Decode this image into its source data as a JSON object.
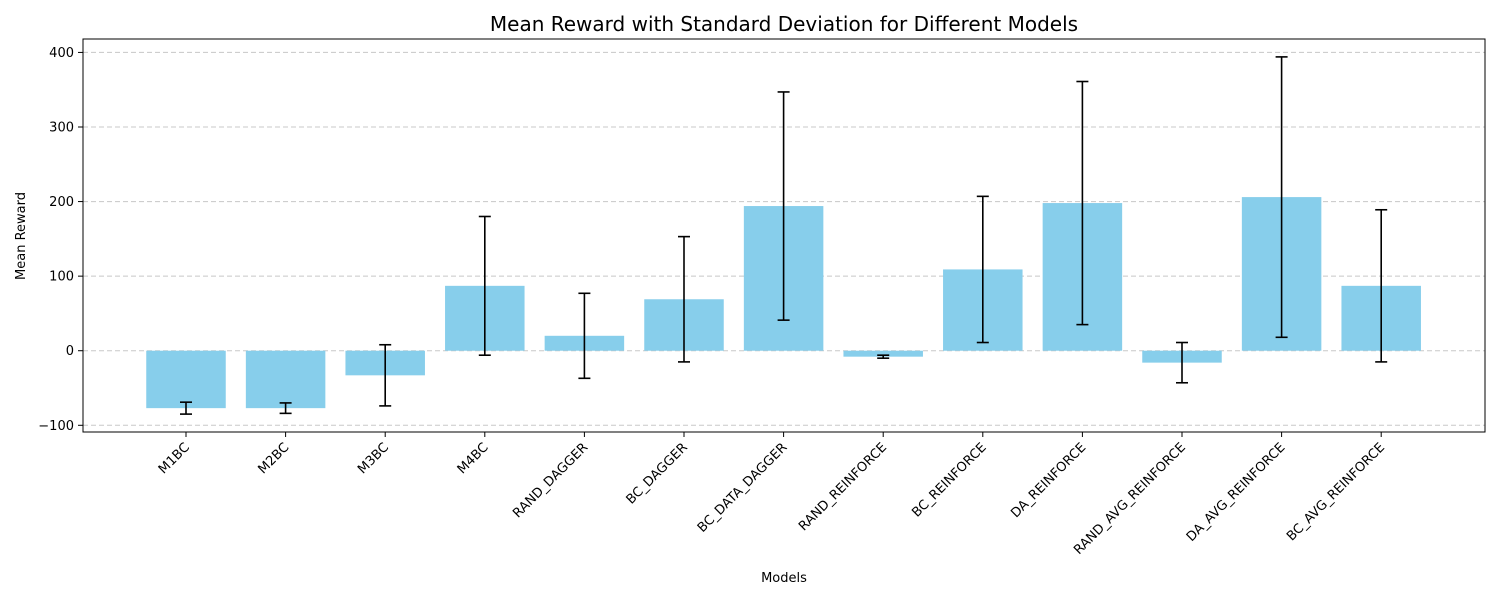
{
  "chart_data": {
    "type": "bar",
    "title": "Mean Reward with Standard Deviation for Different Models",
    "xlabel": "Models",
    "ylabel": "Mean Reward",
    "ylim": [
      -109,
      418
    ],
    "yticks": [
      -100,
      0,
      100,
      200,
      300,
      400
    ],
    "grid": "y-axis dashed",
    "bar_color": "#87CEEB",
    "error_color": "#000000",
    "categories": [
      "M1BC",
      "M2BC",
      "M3BC",
      "M4BC",
      "RAND_DAGGER",
      "BC_DAGGER",
      "BC_DATA_DAGGER",
      "RAND_REINFORCE",
      "BC_REINFORCE",
      "DA_REINFORCE",
      "RAND_AVG_REINFORCE",
      "DA_AVG_REINFORCE",
      "BC_AVG_REINFORCE"
    ],
    "values": [
      -77,
      -77,
      -33,
      87,
      20,
      69,
      194,
      -8,
      109,
      198,
      -16,
      206,
      87
    ],
    "std": [
      8,
      7,
      41,
      93,
      57,
      84,
      153,
      2,
      98,
      163,
      27,
      188,
      102
    ]
  }
}
